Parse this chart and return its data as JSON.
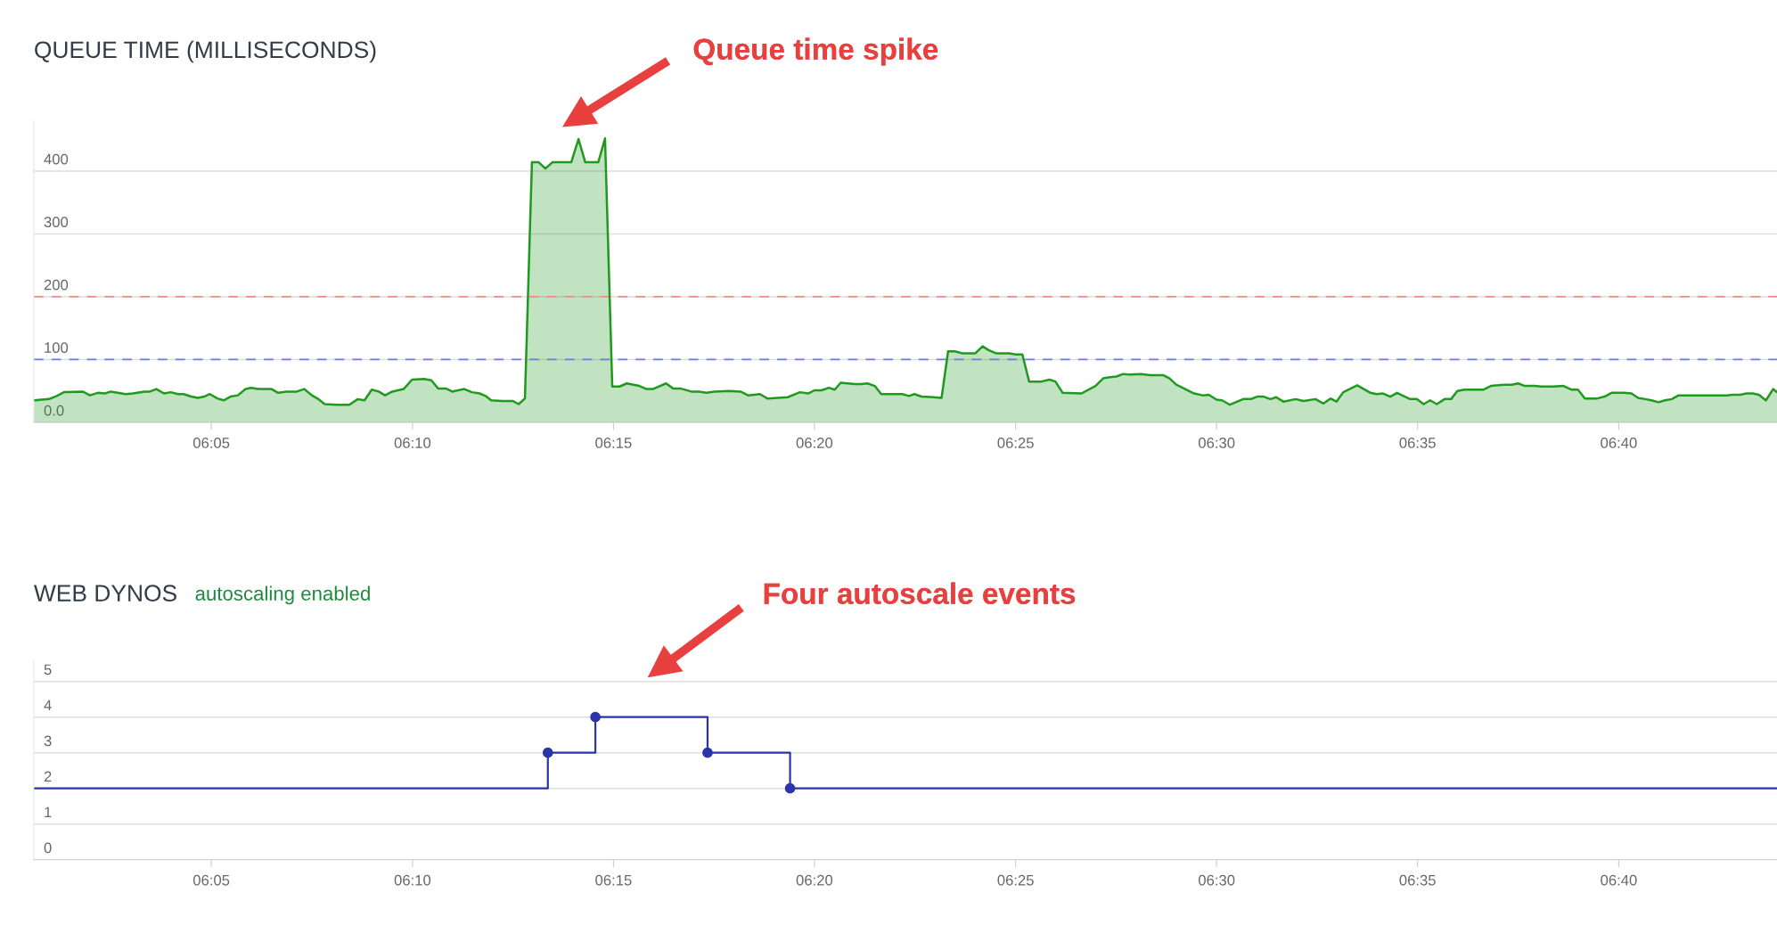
{
  "chart_data": [
    {
      "type": "area",
      "title": "QUEUE TIME (MILLISECONDS)",
      "xlim": [
        6.0097,
        6.7323
      ],
      "xticks": [
        {
          "value": 6.0833,
          "label": "06:05"
        },
        {
          "value": 6.1667,
          "label": "06:10"
        },
        {
          "value": 6.25,
          "label": "06:15"
        },
        {
          "value": 6.3333,
          "label": "06:20"
        },
        {
          "value": 6.4167,
          "label": "06:25"
        },
        {
          "value": 6.5,
          "label": "06:30"
        },
        {
          "value": 6.5833,
          "label": "06:35"
        },
        {
          "value": 6.6667,
          "label": "06:40"
        }
      ],
      "ylim": [
        0,
        480
      ],
      "yticks": [
        {
          "value": 0,
          "label": "0.0"
        },
        100,
        200,
        300,
        400
      ],
      "grid": "y",
      "ref_lines": [
        {
          "axis": "y",
          "value": 200,
          "color": "#f28b8b",
          "line_style": "dashed"
        },
        {
          "axis": "y",
          "value": 100,
          "color": "#6b7cf7",
          "line_style": "dashed"
        }
      ],
      "annotations": [
        "Queue time spike"
      ],
      "series": [
        {
          "color": "#1f9a1f",
          "x": [
            6.0098,
            6.0128,
            6.016,
            6.0192,
            6.0222,
            6.03,
            6.033,
            6.0362,
            6.0392,
            6.0417,
            6.0478,
            6.0508,
            6.0555,
            6.0578,
            6.0605,
            6.0637,
            6.0665,
            6.0695,
            6.0718,
            6.075,
            6.0777,
            6.0803,
            6.0827,
            6.0858,
            6.0885,
            6.0912,
            6.0943,
            6.0975,
            6.0998,
            6.1028,
            6.1083,
            6.111,
            6.1145,
            6.1187,
            6.1218,
            6.125,
            6.1277,
            6.1303,
            6.1355,
            6.1405,
            6.144,
            6.1468,
            6.1498,
            6.1527,
            6.1553,
            6.1583,
            6.163,
            6.1665,
            6.1715,
            6.1745,
            6.1773,
            6.1805,
            6.1832,
            6.1882,
            6.1913,
            6.1945,
            6.197,
            6.1993,
            6.2038,
            6.2082,
            6.2107,
            6.2133,
            6.2162,
            6.219,
            6.2218,
            6.2247,
            6.2325,
            6.2355,
            6.2383,
            6.2437,
            6.2465,
            6.2495,
            6.2525,
            6.2555,
            6.2607,
            6.2637,
            6.2663,
            6.2718,
            6.2747,
            6.2777,
            6.2823,
            6.2855,
            6.2885,
            6.2917,
            6.298,
            6.3027,
            6.3058,
            6.3107,
            6.3138,
            6.3222,
            6.3273,
            6.3307,
            6.3333,
            6.3362,
            6.3393,
            6.3417,
            6.3442,
            6.3502,
            6.3525,
            6.3553,
            6.3583,
            6.361,
            6.3665,
            6.3697,
            6.3725,
            6.3747,
            6.3777,
            6.3828,
            6.386,
            6.3887,
            6.3915,
            6.3945,
            6.4,
            6.403,
            6.4055,
            6.4085,
            6.414,
            6.4167,
            6.4195,
            6.4223,
            6.4275,
            6.4307,
            6.4332,
            6.4362,
            6.444,
            6.4498,
            6.453,
            6.4558,
            6.4585,
            6.4613,
            6.464,
            6.4687,
            6.4725,
            6.478,
            6.4805,
            6.4833,
            6.4907,
            6.4942,
            6.4968,
            6.5,
            6.5023,
            6.5055,
            6.511,
            6.5142,
            6.5168,
            6.5195,
            6.5223,
            6.5247,
            6.5277,
            6.5328,
            6.536,
            6.541,
            6.5443,
            6.5472,
            6.5497,
            6.5525,
            6.5583,
            6.5638,
            6.5663,
            6.569,
            6.572,
            6.5748,
            6.5775,
            6.5802,
            6.583,
            6.5858,
            6.5885,
            6.5913,
            6.5945,
            6.5972,
            6.5998,
            6.6027,
            6.6105,
            6.6137,
            6.6168,
            6.6192,
            6.6223,
            6.625,
            6.6278,
            6.6318,
            6.6347,
            6.6395,
            6.6438,
            6.6472,
            6.6498,
            6.6527,
            6.6578,
            6.6608,
            6.6637,
            6.6688,
            6.672,
            6.6747,
            6.6777,
            6.6803,
            6.6832,
            6.6858,
            6.6887,
            6.6915,
            6.7115,
            6.7138,
            6.717,
            6.7197,
            6.7222,
            6.7248,
            6.7277,
            6.7307,
            6.7323
          ],
          "values": [
            35,
            36,
            37,
            42,
            48,
            49,
            43,
            47,
            46,
            49,
            45,
            46,
            49,
            49,
            53,
            46,
            48,
            45,
            45,
            41,
            39,
            41,
            45,
            38,
            35,
            41,
            43,
            53,
            55,
            53,
            53,
            47,
            49,
            49,
            53,
            43,
            37,
            29,
            28,
            28,
            37,
            35,
            52,
            49,
            43,
            49,
            53,
            68,
            69,
            67,
            54,
            54,
            49,
            53,
            48,
            46,
            42,
            35,
            34,
            34,
            29,
            38,
            414,
            414,
            404,
            414,
            414,
            451,
            414,
            414,
            452,
            57,
            57,
            62,
            58,
            53,
            53,
            62,
            54,
            54,
            49,
            49,
            47,
            49,
            50,
            49,
            43,
            45,
            38,
            40,
            48,
            46,
            51,
            51,
            55,
            52,
            63,
            61,
            61,
            62,
            58,
            45,
            45,
            45,
            42,
            45,
            41,
            40,
            39,
            113,
            113,
            110,
            110,
            121,
            115,
            110,
            110,
            108,
            108,
            65,
            65,
            68,
            65,
            47,
            46,
            58,
            70,
            72,
            73,
            77,
            76,
            77,
            75,
            75,
            70,
            60,
            46,
            43,
            44,
            36,
            35,
            28,
            37,
            37,
            41,
            41,
            37,
            40,
            33,
            37,
            34,
            37,
            30,
            38,
            33,
            48,
            59,
            47,
            45,
            46,
            41,
            47,
            42,
            37,
            37,
            29,
            35,
            29,
            37,
            37,
            50,
            52,
            52,
            58,
            59,
            60,
            60,
            62,
            58,
            58,
            57,
            57,
            58,
            52,
            52,
            38,
            38,
            41,
            47,
            47,
            46,
            39,
            37,
            35,
            32,
            35,
            37,
            43,
            43,
            44,
            44,
            46,
            46,
            44,
            35,
            53,
            48
          ]
        }
      ]
    },
    {
      "type": "step",
      "title": "WEB DYNOS",
      "subtitle": "autoscaling enabled",
      "xlim": [
        6.0097,
        6.7323
      ],
      "xticks": [
        {
          "value": 6.0833,
          "label": "06:05"
        },
        {
          "value": 6.1667,
          "label": "06:10"
        },
        {
          "value": 6.25,
          "label": "06:15"
        },
        {
          "value": 6.3333,
          "label": "06:20"
        },
        {
          "value": 6.4167,
          "label": "06:25"
        },
        {
          "value": 6.5,
          "label": "06:30"
        },
        {
          "value": 6.5833,
          "label": "06:35"
        },
        {
          "value": 6.6667,
          "label": "06:40"
        }
      ],
      "ylim": [
        0,
        5.6
      ],
      "yticks": [
        0,
        1,
        2,
        3,
        4,
        5
      ],
      "grid": "y",
      "annotations": [
        "Four autoscale events"
      ],
      "series": [
        {
          "type": "step",
          "color": "#2b35a8",
          "x": [
            6.0097,
            6.2228,
            6.2425,
            6.289,
            6.3232,
            6.7323
          ],
          "values": [
            2,
            3,
            4,
            3,
            2,
            2
          ]
        },
        {
          "type": "scatter",
          "marker": "circle",
          "color": "#2b35a8",
          "x": [
            6.2228,
            6.2425,
            6.289,
            6.3232
          ],
          "values": [
            3,
            4,
            3,
            2
          ]
        }
      ]
    }
  ]
}
